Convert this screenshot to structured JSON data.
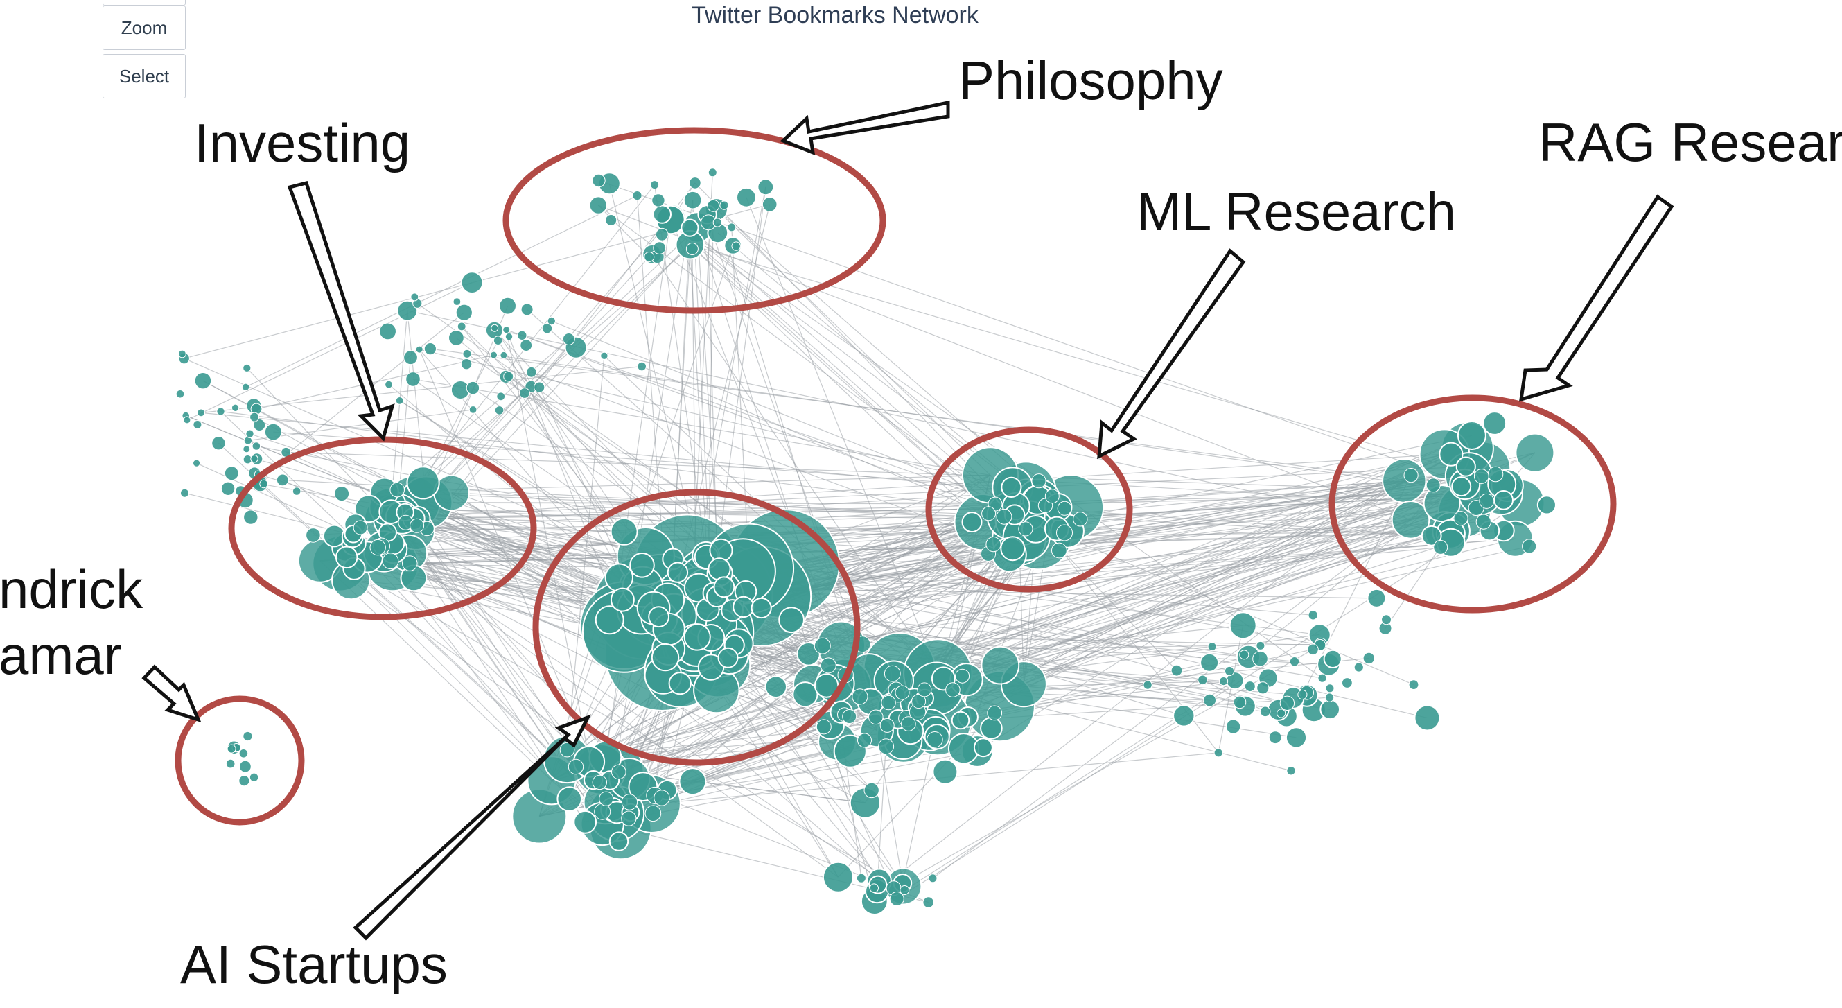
{
  "toolbar": {
    "top_partial_label": "",
    "zoom_label": "Zoom",
    "select_label": "Select"
  },
  "plot": {
    "title": "Twitter Bookmarks Network"
  },
  "colors": {
    "node": "#3a9a91",
    "edge": "#9aa0a6",
    "cluster_ring": "#b24a45",
    "arrow_stroke": "#111111"
  },
  "clusters": [
    {
      "key": "philosophy",
      "label": "Philosophy"
    },
    {
      "key": "investing",
      "label": "Investing"
    },
    {
      "key": "ml",
      "label": "ML Research"
    },
    {
      "key": "rag",
      "label": "RAG Resear"
    },
    {
      "key": "kendrick",
      "label_line1": "ndrick",
      "label_line2": "amar"
    },
    {
      "key": "ai",
      "label": "AI Startups"
    }
  ]
}
